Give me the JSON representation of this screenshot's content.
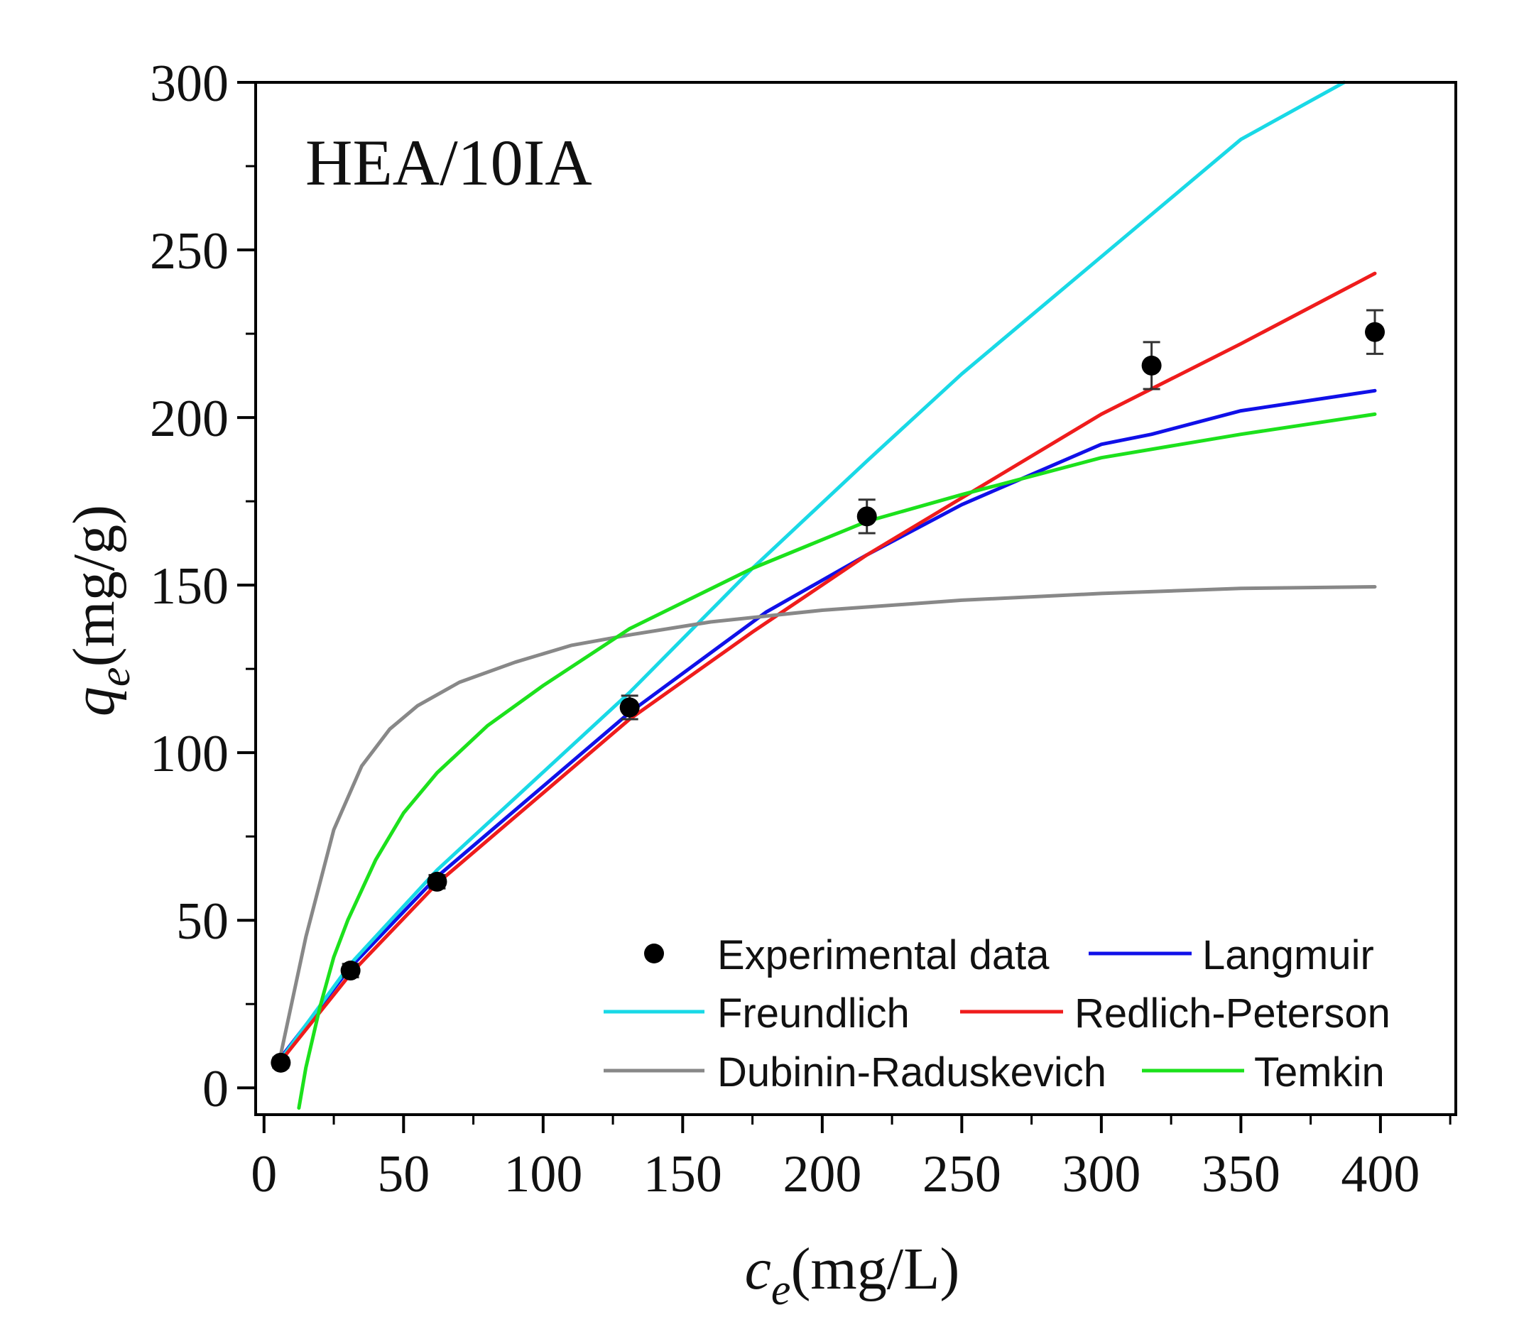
{
  "chart_data": {
    "type": "scatter",
    "title": "",
    "panel_label": "HEA/10IA",
    "xlabel": {
      "symbol": "c",
      "subscript": "e",
      "unit": "(mg/L)"
    },
    "ylabel": {
      "symbol": "q",
      "subscript": "e",
      "unit": "(mg/g)"
    },
    "xlim": [
      -3,
      427
    ],
    "ylim": [
      -8,
      300
    ],
    "xticks": [
      0,
      50,
      100,
      150,
      200,
      250,
      300,
      350,
      400
    ],
    "yticks": [
      0,
      50,
      100,
      150,
      200,
      250,
      300
    ],
    "xtick_labels": [
      "0",
      "50",
      "100",
      "150",
      "200",
      "250",
      "300",
      "350",
      "400"
    ],
    "ytick_labels": [
      "0",
      "50",
      "100",
      "150",
      "200",
      "250",
      "300"
    ],
    "grid": false,
    "legend_position": "bottom-right",
    "experimental": {
      "name": "Experimental data",
      "color": "#000000",
      "x": [
        6,
        31,
        62,
        131,
        216,
        318,
        398
      ],
      "y": [
        7.5,
        35,
        61.5,
        113.5,
        170.5,
        215.5,
        225.5
      ],
      "yerr": [
        1.5,
        2,
        2,
        3.5,
        5,
        7,
        6.5
      ]
    },
    "series": [
      {
        "name": "Langmuir",
        "color": "#1010e8",
        "x": [
          6,
          31,
          62,
          131,
          180,
          216,
          250,
          300,
          318,
          350,
          398
        ],
        "y": [
          9,
          36,
          63,
          112,
          142,
          159,
          174,
          192,
          195,
          202,
          208
        ]
      },
      {
        "name": "Freundlich",
        "color": "#19d9e6",
        "x": [
          6,
          31,
          62,
          131,
          175,
          216,
          250,
          300,
          350,
          387
        ],
        "y": [
          8.5,
          37,
          65,
          118,
          155,
          187,
          213,
          248,
          283,
          300
        ]
      },
      {
        "name": "Redlich-Peterson",
        "color": "#ef1c1c",
        "x": [
          6,
          31,
          62,
          131,
          175,
          216,
          250,
          300,
          350,
          398
        ],
        "y": [
          8,
          34,
          61,
          110,
          136,
          159,
          176,
          201,
          222,
          243
        ]
      },
      {
        "name": "Dubinin-Raduskevich",
        "color": "#888888",
        "x": [
          6,
          15,
          25,
          35,
          45,
          55,
          70,
          90,
          110,
          130,
          160,
          200,
          250,
          300,
          350,
          398
        ],
        "y": [
          10,
          45,
          77,
          96,
          107,
          114,
          121,
          127,
          132,
          135,
          139,
          142.5,
          145.5,
          147.5,
          149,
          149.5
        ]
      },
      {
        "name": "Temkin",
        "color": "#1ce11c",
        "x": [
          12.5,
          15,
          20,
          25,
          30,
          40,
          50,
          62,
          80,
          100,
          131,
          175,
          216,
          250,
          300,
          350,
          398
        ],
        "y": [
          -6,
          6,
          24,
          39,
          50,
          68,
          82,
          94,
          108,
          120,
          137,
          155,
          169,
          177,
          188,
          195,
          201
        ]
      }
    ]
  }
}
